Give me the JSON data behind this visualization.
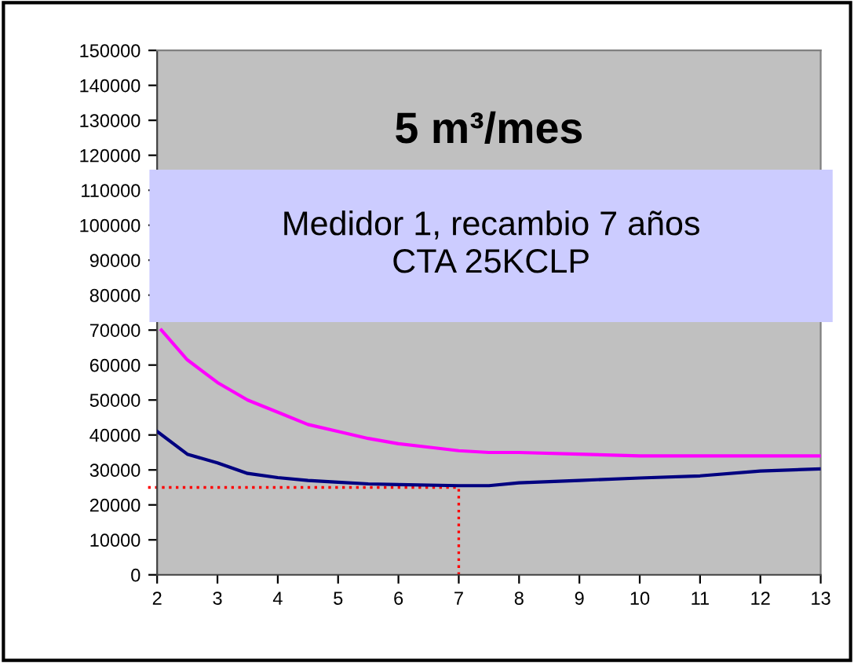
{
  "chart_data": {
    "type": "line",
    "title": "5 m³/mes",
    "annotations": [
      "Medidor 1, recambio 7 años\nCTA 25KCLP"
    ],
    "series": [
      {
        "color": "#ff00ff",
        "x": [
          2.07,
          2.5,
          3,
          3.5,
          4,
          4.5,
          5,
          5.5,
          6,
          6.5,
          7,
          7.5,
          8,
          9,
          10,
          11,
          12,
          13
        ],
        "values": [
          70000,
          61500,
          55000,
          50000,
          46500,
          43000,
          41000,
          39000,
          37500,
          36500,
          35500,
          35000,
          35000,
          34500,
          34000,
          34000,
          34000,
          34000
        ]
      },
      {
        "color": "#000080",
        "x": [
          2,
          2.5,
          3,
          3.5,
          4,
          4.5,
          5,
          5.5,
          6,
          7,
          7.5,
          8,
          9,
          10,
          11,
          12,
          13
        ],
        "values": [
          41000,
          34500,
          32000,
          29000,
          27800,
          27000,
          26500,
          26000,
          25800,
          25500,
          25500,
          26300,
          27000,
          27700,
          28300,
          29700,
          30300
        ]
      }
    ],
    "ref_lines": [
      {
        "axis": "y",
        "value": 25000,
        "color": "#ff0000",
        "line_style": "dotted"
      },
      {
        "axis": "x",
        "value": 7,
        "color": "#ff0000",
        "line_style": "dotted"
      }
    ],
    "xlim": [
      2,
      13
    ],
    "xticks": [
      2,
      3,
      4,
      5,
      6,
      7,
      8,
      9,
      10,
      11,
      12,
      13
    ],
    "ylim": [
      0,
      150000
    ],
    "yticks": [
      0,
      10000,
      20000,
      30000,
      40000,
      50000,
      60000,
      70000,
      80000,
      90000,
      100000,
      110000,
      120000,
      130000,
      140000,
      150000
    ],
    "grid": false,
    "legend": false,
    "marker": "none",
    "line_style": "solid"
  }
}
